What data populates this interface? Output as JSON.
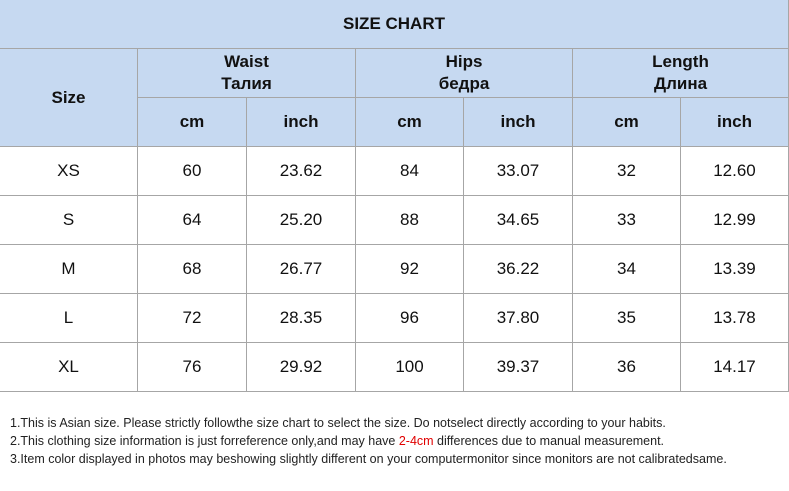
{
  "title": "SIZE CHART",
  "header": {
    "size": "Size",
    "groups": [
      {
        "label": "Waist",
        "label_alt": "Талия"
      },
      {
        "label": "Hips",
        "label_alt": "бедра"
      },
      {
        "label": "Length",
        "label_alt": "Длина"
      }
    ],
    "units": [
      "cm",
      "inch",
      "cm",
      "inch",
      "cm",
      "inch"
    ]
  },
  "table": {
    "rows": [
      [
        "XS",
        "60",
        "23.62",
        "84",
        "33.07",
        "32",
        "12.60"
      ],
      [
        "S",
        "64",
        "25.20",
        "88",
        "34.65",
        "33",
        "12.99"
      ],
      [
        "M",
        "68",
        "26.77",
        "92",
        "36.22",
        "34",
        "13.39"
      ],
      [
        "L",
        "72",
        "28.35",
        "96",
        "37.80",
        "35",
        "13.78"
      ],
      [
        "XL",
        "76",
        "29.92",
        "100",
        "39.37",
        "36",
        "14.17"
      ]
    ]
  },
  "notes": [
    [
      "1.This is Asian size. Please strictly followthe size chart to select the size. Do notselect directly according to your habits."
    ],
    [
      "2.This clothing size information is just forreference only,and may have ",
      "2-4cm",
      " differences due to manual measurement."
    ],
    [
      "3.Item color displayed in photos may beshowing slightly different on your computermonitor since monitors are not calibratedsame."
    ]
  ]
}
